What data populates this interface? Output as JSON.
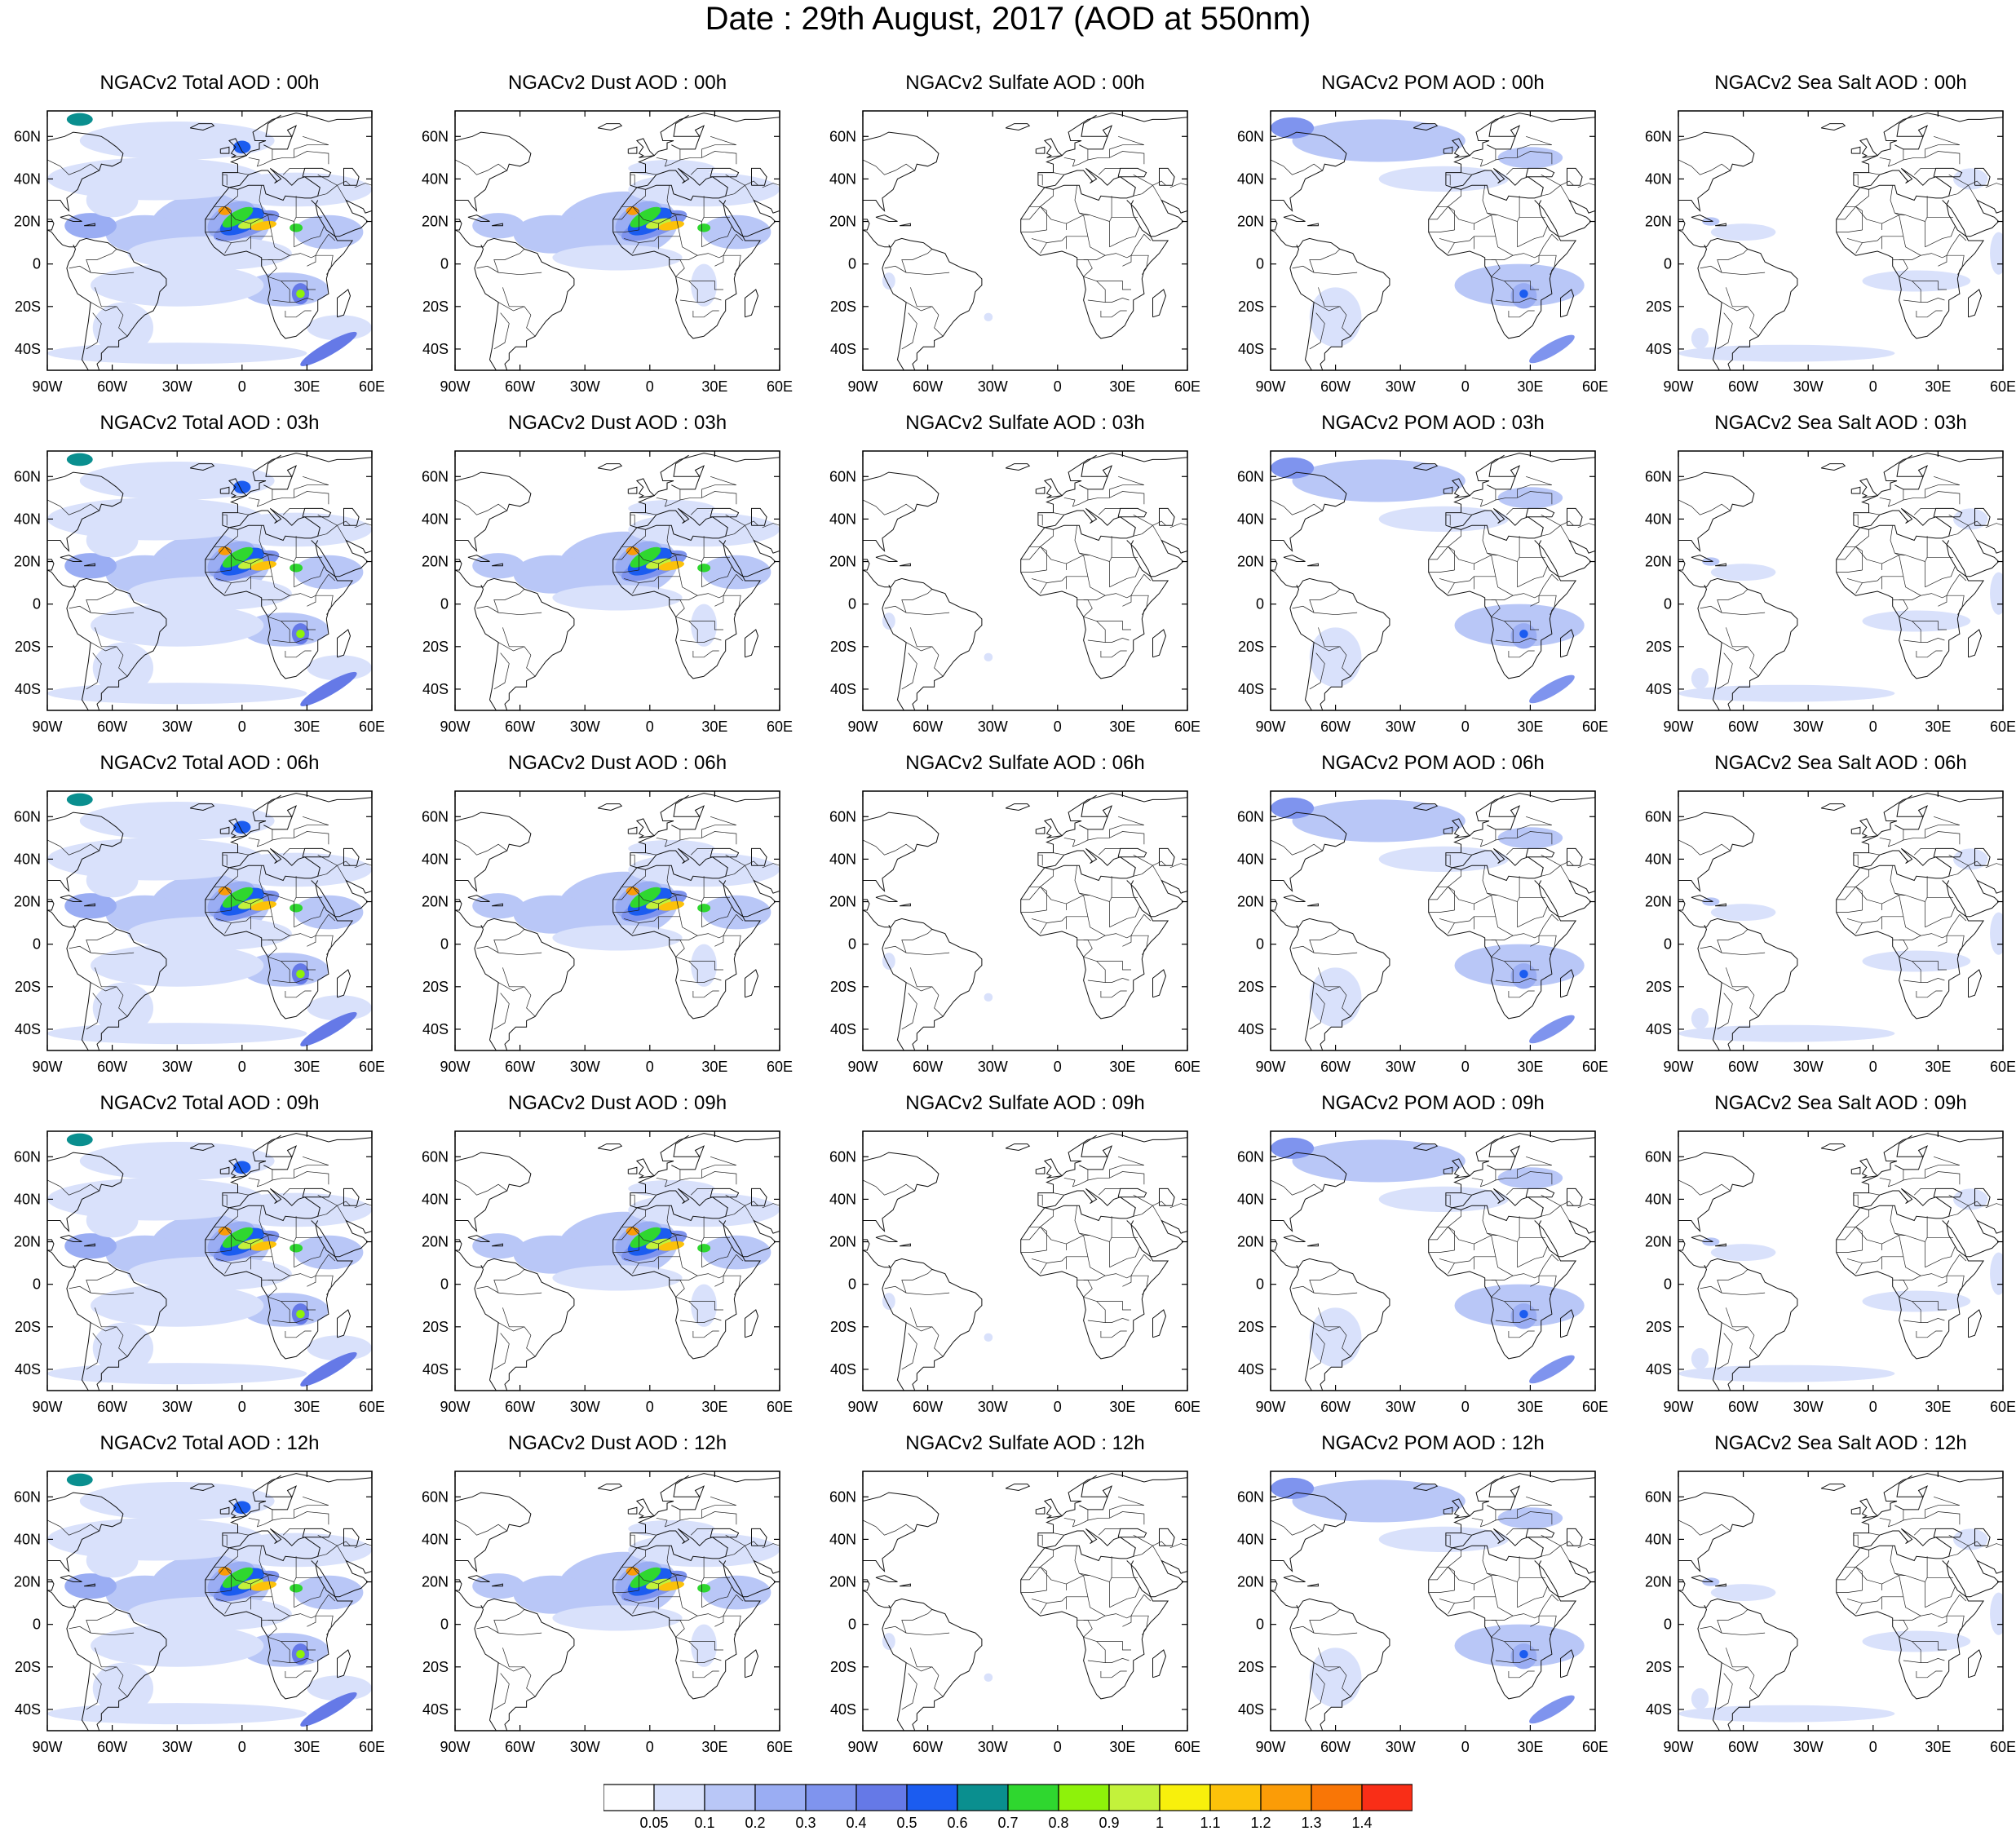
{
  "title": "Date : 29th August, 2017 (AOD at 550nm)",
  "map": {
    "lon_range": [
      -90,
      60
    ],
    "lat_range": [
      -50,
      72
    ],
    "lon_ticks": [
      "90W",
      "60W",
      "30W",
      "0",
      "30E",
      "60E"
    ],
    "lat_ticks": [
      "60N",
      "40N",
      "20N",
      "0",
      "20S",
      "40S"
    ]
  },
  "panels": [
    {
      "title": "NGACv2 Total AOD : 00h",
      "species": "total"
    },
    {
      "title": "NGACv2 Dust AOD : 00h",
      "species": "dust"
    },
    {
      "title": "NGACv2 Sulfate AOD : 00h",
      "species": "sulfate"
    },
    {
      "title": "NGACv2 POM AOD : 00h",
      "species": "pom"
    },
    {
      "title": "NGACv2 Sea Salt AOD : 00h",
      "species": "seasalt"
    },
    {
      "title": "NGACv2 Total AOD : 03h",
      "species": "total"
    },
    {
      "title": "NGACv2 Dust AOD : 03h",
      "species": "dust"
    },
    {
      "title": "NGACv2 Sulfate AOD : 03h",
      "species": "sulfate"
    },
    {
      "title": "NGACv2 POM AOD : 03h",
      "species": "pom"
    },
    {
      "title": "NGACv2 Sea Salt AOD : 03h",
      "species": "seasalt"
    },
    {
      "title": "NGACv2 Total AOD : 06h",
      "species": "total"
    },
    {
      "title": "NGACv2 Dust AOD : 06h",
      "species": "dust"
    },
    {
      "title": "NGACv2 Sulfate AOD : 06h",
      "species": "sulfate"
    },
    {
      "title": "NGACv2 POM AOD : 06h",
      "species": "pom"
    },
    {
      "title": "NGACv2 Sea Salt AOD : 06h",
      "species": "seasalt"
    },
    {
      "title": "NGACv2 Total AOD : 09h",
      "species": "total"
    },
    {
      "title": "NGACv2 Dust AOD : 09h",
      "species": "dust"
    },
    {
      "title": "NGACv2 Sulfate AOD : 09h",
      "species": "sulfate"
    },
    {
      "title": "NGACv2 POM AOD : 09h",
      "species": "pom"
    },
    {
      "title": "NGACv2 Sea Salt  AOD : 09h",
      "species": "seasalt"
    },
    {
      "title": "NGACv2 Total AOD  : 12h",
      "species": "total"
    },
    {
      "title": "NGACv2 Dust AOD : 12h",
      "species": "dust"
    },
    {
      "title": "NGACv2 Sulfate AOD : 12h",
      "species": "sulfate"
    },
    {
      "title": "NGACv2 POM  AOD : 12h",
      "species": "pom"
    },
    {
      "title": "NGACv2 Sea Salt  AOD : 12h",
      "species": "seasalt"
    }
  ],
  "colorbar": {
    "labels": [
      "0.05",
      "0.1",
      "0.2",
      "0.3",
      "0.4",
      "0.5",
      "0.6",
      "0.7",
      "0.8",
      "0.9",
      "1",
      "1.1",
      "1.2",
      "1.3",
      "1.4"
    ],
    "colors": [
      "#ffffff",
      "#d9e1fb",
      "#b9c7f7",
      "#9aadf3",
      "#7f94ee",
      "#6579e7",
      "#1b5cf0",
      "#0a8f8f",
      "#2fd72f",
      "#8ef20a",
      "#c3f23b",
      "#f8f00c",
      "#fcc20a",
      "#fb9c07",
      "#f97606",
      "#f92e17"
    ]
  }
}
